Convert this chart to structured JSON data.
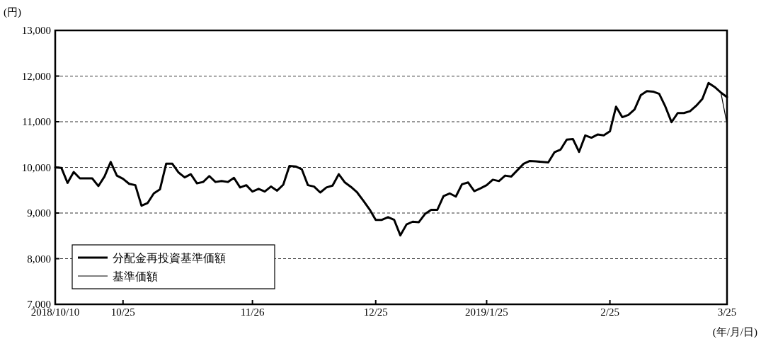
{
  "chart_data": {
    "type": "line",
    "ylabel": "(円)",
    "xlabel": "(年/月/日)",
    "categories": [
      "2018/10/10",
      null,
      null,
      null,
      null,
      null,
      null,
      null,
      null,
      null,
      null,
      "10/25",
      null,
      null,
      null,
      null,
      null,
      null,
      null,
      null,
      null,
      null,
      null,
      null,
      null,
      null,
      null,
      null,
      null,
      null,
      null,
      null,
      "11/26",
      null,
      null,
      null,
      null,
      null,
      null,
      null,
      null,
      null,
      null,
      null,
      null,
      null,
      null,
      null,
      null,
      null,
      null,
      null,
      "12/25",
      null,
      null,
      null,
      null,
      null,
      null,
      null,
      null,
      null,
      null,
      null,
      null,
      null,
      null,
      null,
      null,
      null,
      "2019/1/25",
      null,
      null,
      null,
      null,
      null,
      null,
      null,
      null,
      null,
      null,
      null,
      null,
      null,
      null,
      null,
      null,
      null,
      null,
      null,
      "2/25",
      null,
      null,
      null,
      null,
      null,
      null,
      null,
      null,
      null,
      null,
      null,
      null,
      null,
      null,
      null,
      null,
      null,
      null,
      "3/25"
    ],
    "ylim": [
      7000,
      13000
    ],
    "yticks": [
      {
        "value": 7000,
        "label": "7,000"
      },
      {
        "value": 8000,
        "label": "8,000"
      },
      {
        "value": 9000,
        "label": "9,000"
      },
      {
        "value": 10000,
        "label": "10,000"
      },
      {
        "value": 11000,
        "label": "11,000"
      },
      {
        "value": 12000,
        "label": "12,000"
      },
      {
        "value": 13000,
        "label": "13,000"
      }
    ],
    "grid": "y",
    "legend": "bottom left",
    "marker": "none",
    "line_style": "solid",
    "series": [
      {
        "name": "分配金再投資基準価額",
        "color": "#000000",
        "values": [
          10000,
          9990,
          9660,
          9900,
          9760,
          9760,
          9760,
          9590,
          9800,
          10120,
          9820,
          9750,
          9640,
          9610,
          9160,
          9220,
          9430,
          9520,
          10080,
          10080,
          9890,
          9780,
          9850,
          9650,
          9680,
          9810,
          9680,
          9700,
          9680,
          9770,
          9560,
          9610,
          9470,
          9530,
          9470,
          9580,
          9490,
          9620,
          10030,
          10020,
          9960,
          9610,
          9580,
          9450,
          9560,
          9600,
          9850,
          9670,
          9570,
          9450,
          9270,
          9080,
          8850,
          8850,
          8910,
          8850,
          8510,
          8750,
          8810,
          8800,
          8980,
          9070,
          9070,
          9370,
          9430,
          9360,
          9630,
          9670,
          9480,
          9540,
          9610,
          9730,
          9700,
          9820,
          9800,
          9940,
          10080,
          10140,
          10130,
          10120,
          10110,
          10330,
          10390,
          10610,
          10620,
          10340,
          10700,
          10650,
          10720,
          10700,
          10790,
          11330,
          11100,
          11150,
          11270,
          11580,
          11670,
          11660,
          11610,
          11330,
          10990,
          11190,
          11190,
          11230,
          11350,
          11500,
          11850,
          11760,
          11640,
          11540
        ]
      },
      {
        "name": "基準価額",
        "color": "#000000",
        "values": [
          null,
          null,
          null,
          null,
          null,
          null,
          null,
          null,
          null,
          null,
          null,
          null,
          null,
          null,
          null,
          null,
          null,
          null,
          null,
          null,
          null,
          null,
          null,
          null,
          null,
          null,
          null,
          null,
          null,
          null,
          null,
          null,
          null,
          null,
          null,
          null,
          null,
          null,
          null,
          null,
          null,
          null,
          null,
          null,
          null,
          null,
          null,
          null,
          null,
          null,
          null,
          null,
          null,
          null,
          null,
          null,
          null,
          null,
          null,
          null,
          null,
          null,
          null,
          null,
          null,
          null,
          null,
          null,
          null,
          null,
          null,
          null,
          null,
          null,
          null,
          null,
          null,
          null,
          null,
          null,
          null,
          null,
          null,
          null,
          null,
          null,
          null,
          null,
          null,
          null,
          null,
          null,
          null,
          null,
          null,
          null,
          null,
          null,
          null,
          null,
          null,
          null,
          null,
          null,
          null,
          null,
          null,
          null,
          11640,
          10950
        ]
      }
    ]
  }
}
